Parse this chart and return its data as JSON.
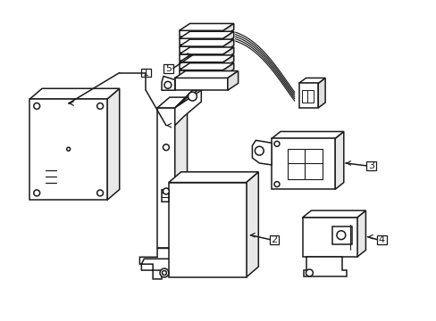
{
  "background_color": "#ffffff",
  "line_color": "#1a1a1a",
  "line_width": 1.1,
  "fig_width": 4.89,
  "fig_height": 3.6,
  "dpi": 100,
  "labels": [
    "1",
    "2",
    "3",
    "4",
    "5"
  ]
}
